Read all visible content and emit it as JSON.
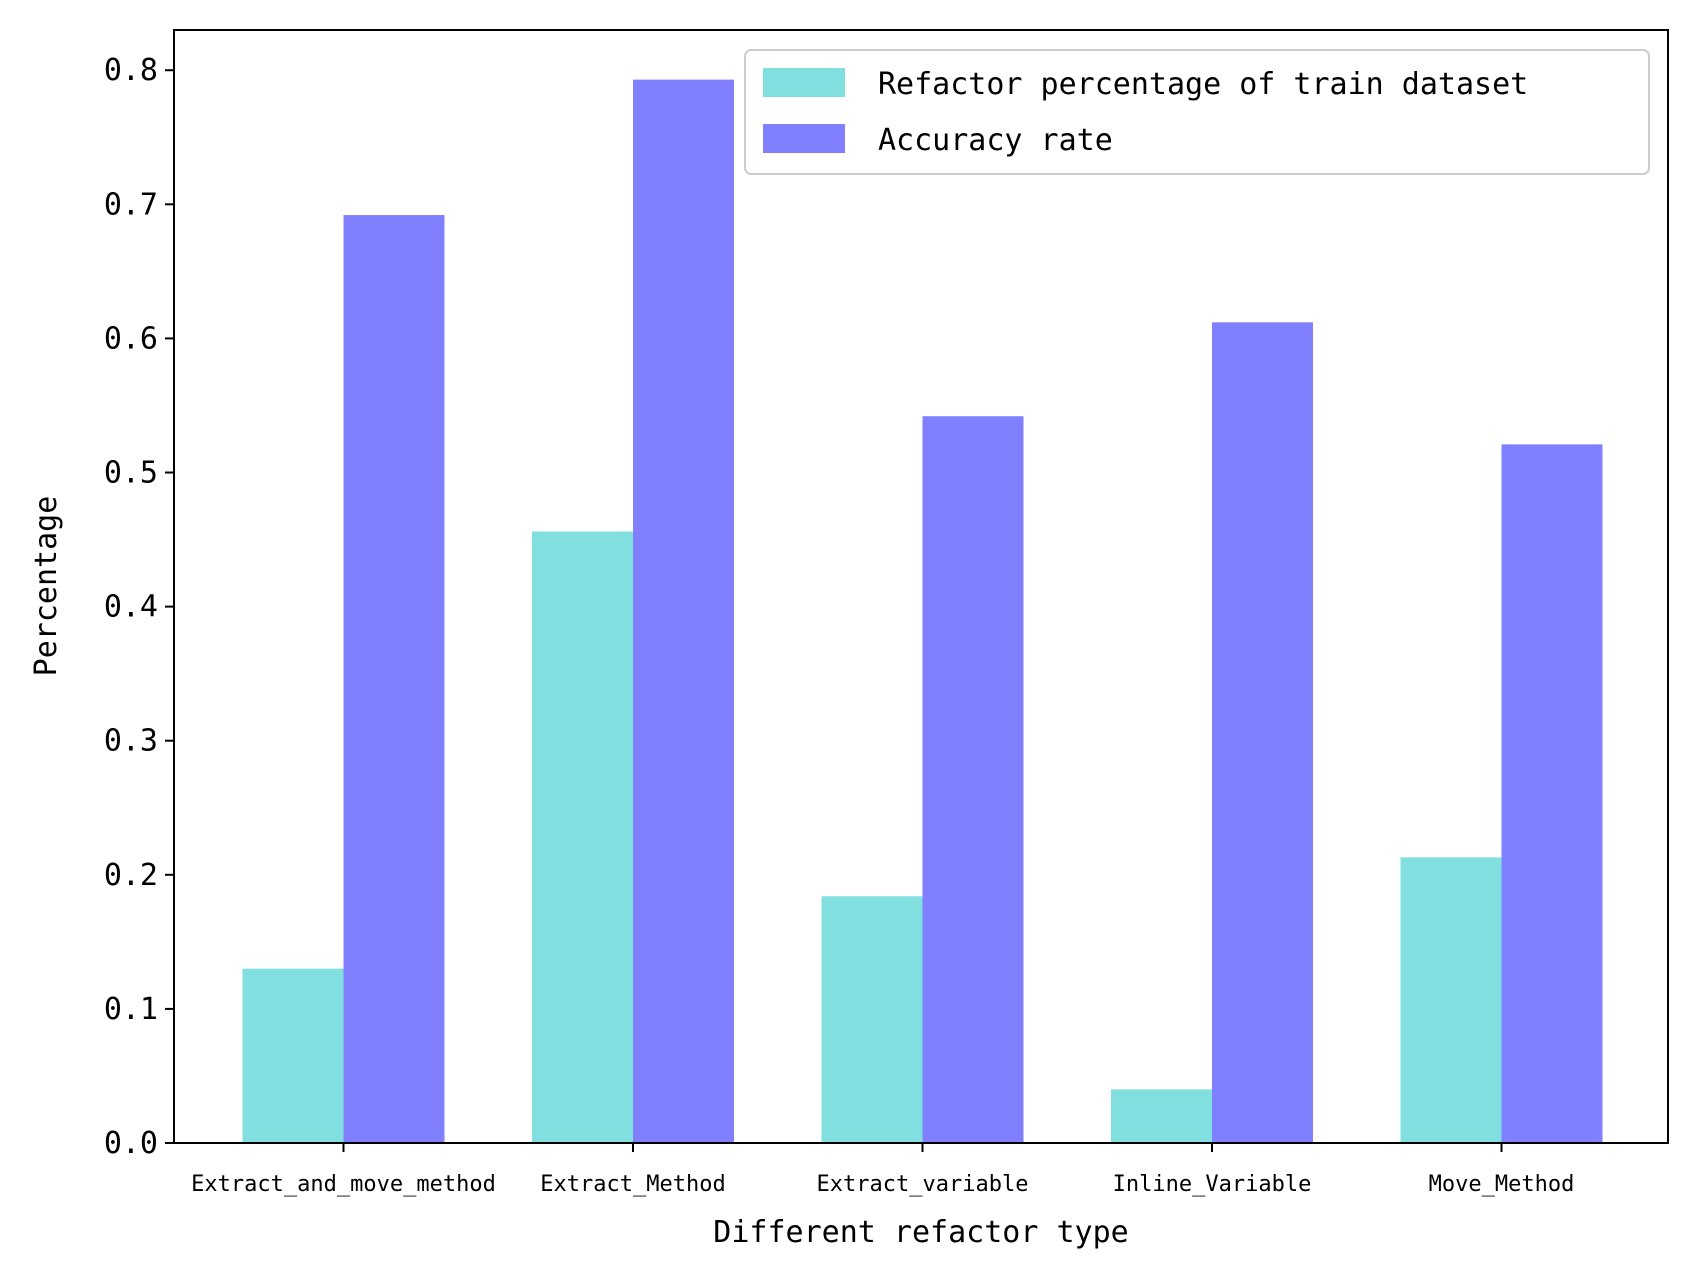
{
  "chart_data": {
    "type": "bar",
    "title": "",
    "xlabel": "Different refactor type",
    "ylabel": "Percentage",
    "ylim": [
      0,
      0.83
    ],
    "yticks": [
      "0.0",
      "0.1",
      "0.2",
      "0.3",
      "0.4",
      "0.5",
      "0.6",
      "0.7",
      "0.8"
    ],
    "categories": [
      "Extract_and_move_method",
      "Extract_Method",
      "Extract_variable",
      "Inline_Variable",
      "Move_Method"
    ],
    "series": [
      {
        "name": "Refactor percentage of train dataset",
        "color": "#81dfdf",
        "values": [
          0.13,
          0.456,
          0.184,
          0.04,
          0.213
        ]
      },
      {
        "name": "Accuracy rate",
        "color": "#8080ff",
        "values": [
          0.692,
          0.793,
          0.542,
          0.612,
          0.521
        ]
      }
    ],
    "legend": "top-right",
    "grid": false
  }
}
